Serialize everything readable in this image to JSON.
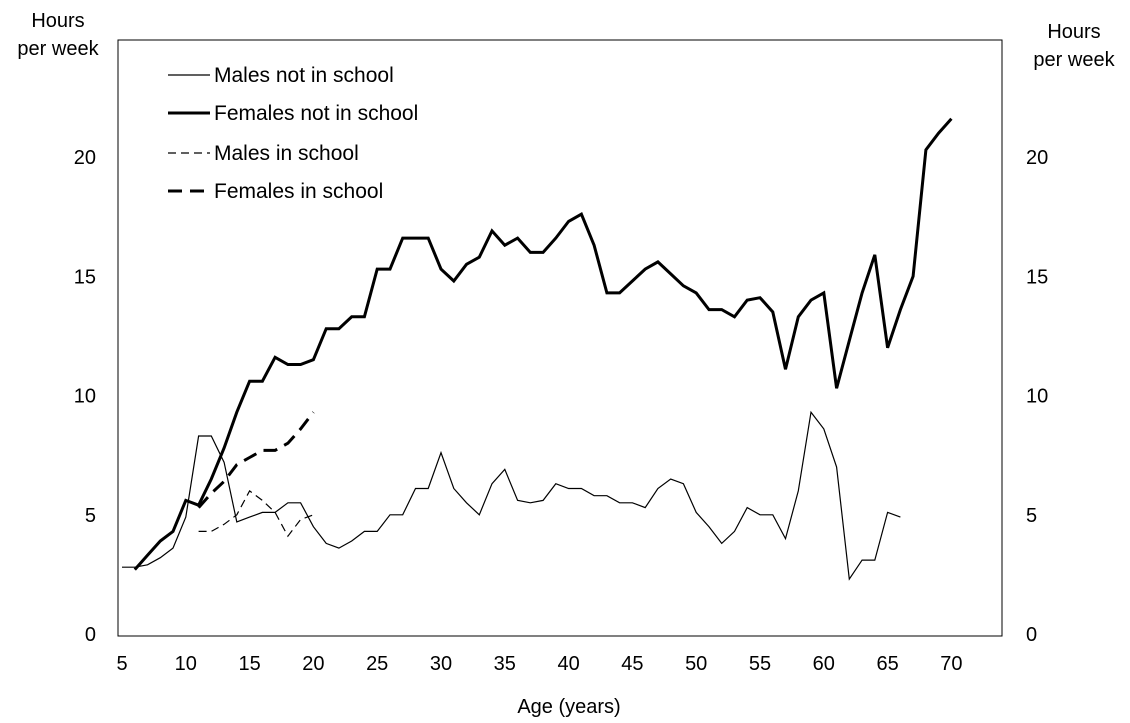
{
  "chart_data": {
    "type": "line",
    "xlabel": "Age (years)",
    "ylabel_left": [
      "Hours",
      "per week"
    ],
    "ylabel_right": [
      "Hours",
      "per week"
    ],
    "xlim": [
      5,
      75
    ],
    "ylim": [
      0,
      25
    ],
    "x_ticks": [
      5,
      10,
      15,
      20,
      25,
      30,
      35,
      40,
      45,
      50,
      55,
      60,
      65,
      70
    ],
    "y_ticks": [
      0,
      5,
      10,
      15,
      20
    ],
    "grid": false,
    "legend_position": "top-left",
    "series": [
      {
        "name": "Males not in school",
        "style": "thin-solid",
        "points": [
          [
            5,
            2.8
          ],
          [
            6,
            2.8
          ],
          [
            7,
            2.9
          ],
          [
            8,
            3.2
          ],
          [
            9,
            3.6
          ],
          [
            10,
            4.9
          ],
          [
            11,
            8.3
          ],
          [
            12,
            8.3
          ],
          [
            13,
            7.2
          ],
          [
            14,
            4.7
          ],
          [
            15,
            4.9
          ],
          [
            16,
            5.1
          ],
          [
            17,
            5.1
          ],
          [
            18,
            5.5
          ],
          [
            19,
            5.5
          ],
          [
            20,
            4.5
          ],
          [
            21,
            3.8
          ],
          [
            22,
            3.6
          ],
          [
            23,
            3.9
          ],
          [
            24,
            4.3
          ],
          [
            25,
            4.3
          ],
          [
            26,
            5.0
          ],
          [
            27,
            5.0
          ],
          [
            28,
            6.1
          ],
          [
            29,
            6.1
          ],
          [
            30,
            7.6
          ],
          [
            31,
            6.1
          ],
          [
            32,
            5.5
          ],
          [
            33,
            5.0
          ],
          [
            34,
            6.3
          ],
          [
            35,
            6.9
          ],
          [
            36,
            5.6
          ],
          [
            37,
            5.5
          ],
          [
            38,
            5.6
          ],
          [
            39,
            6.3
          ],
          [
            40,
            6.1
          ],
          [
            41,
            6.1
          ],
          [
            42,
            5.8
          ],
          [
            43,
            5.8
          ],
          [
            44,
            5.5
          ],
          [
            45,
            5.5
          ],
          [
            46,
            5.3
          ],
          [
            47,
            6.1
          ],
          [
            48,
            6.5
          ],
          [
            49,
            6.3
          ],
          [
            50,
            5.1
          ],
          [
            51,
            4.5
          ],
          [
            52,
            3.8
          ],
          [
            53,
            4.3
          ],
          [
            54,
            5.3
          ],
          [
            55,
            5.0
          ],
          [
            56,
            5.0
          ],
          [
            57,
            4.0
          ],
          [
            58,
            6.0
          ],
          [
            59,
            9.3
          ],
          [
            60,
            8.6
          ],
          [
            61,
            7.0
          ],
          [
            62,
            2.3
          ],
          [
            63,
            3.1
          ],
          [
            64,
            3.1
          ],
          [
            65,
            5.1
          ],
          [
            66,
            4.9
          ]
        ]
      },
      {
        "name": "Females not in school",
        "style": "thick-solid",
        "points": [
          [
            6,
            2.7
          ],
          [
            7,
            3.3
          ],
          [
            8,
            3.9
          ],
          [
            9,
            4.3
          ],
          [
            10,
            5.6
          ],
          [
            11,
            5.4
          ],
          [
            12,
            6.5
          ],
          [
            13,
            7.8
          ],
          [
            14,
            9.3
          ],
          [
            15,
            10.6
          ],
          [
            16,
            10.6
          ],
          [
            17,
            11.6
          ],
          [
            18,
            11.3
          ],
          [
            19,
            11.3
          ],
          [
            20,
            11.5
          ],
          [
            21,
            12.8
          ],
          [
            22,
            12.8
          ],
          [
            23,
            13.3
          ],
          [
            24,
            13.3
          ],
          [
            25,
            15.3
          ],
          [
            26,
            15.3
          ],
          [
            27,
            16.6
          ],
          [
            28,
            16.6
          ],
          [
            29,
            16.6
          ],
          [
            30,
            15.3
          ],
          [
            31,
            14.8
          ],
          [
            32,
            15.5
          ],
          [
            33,
            15.8
          ],
          [
            34,
            16.9
          ],
          [
            35,
            16.3
          ],
          [
            36,
            16.6
          ],
          [
            37,
            16.0
          ],
          [
            38,
            16.0
          ],
          [
            39,
            16.6
          ],
          [
            40,
            17.3
          ],
          [
            41,
            17.6
          ],
          [
            42,
            16.3
          ],
          [
            43,
            14.3
          ],
          [
            44,
            14.3
          ],
          [
            45,
            14.8
          ],
          [
            46,
            15.3
          ],
          [
            47,
            15.6
          ],
          [
            48,
            15.1
          ],
          [
            49,
            14.6
          ],
          [
            50,
            14.3
          ],
          [
            51,
            13.6
          ],
          [
            52,
            13.6
          ],
          [
            53,
            13.3
          ],
          [
            54,
            14.0
          ],
          [
            55,
            14.1
          ],
          [
            56,
            13.5
          ],
          [
            57,
            11.1
          ],
          [
            58,
            13.3
          ],
          [
            59,
            14.0
          ],
          [
            60,
            14.3
          ],
          [
            61,
            10.3
          ],
          [
            62,
            12.3
          ],
          [
            63,
            14.3
          ],
          [
            64,
            15.9
          ],
          [
            65,
            12.0
          ],
          [
            66,
            13.6
          ],
          [
            67,
            15.0
          ],
          [
            68,
            20.3
          ],
          [
            69,
            21.0
          ],
          [
            70,
            21.6
          ]
        ]
      },
      {
        "name": "Males in school",
        "style": "thin-dashed",
        "points": [
          [
            11,
            4.3
          ],
          [
            12,
            4.3
          ],
          [
            13,
            4.6
          ],
          [
            14,
            5.0
          ],
          [
            15,
            6.0
          ],
          [
            16,
            5.6
          ],
          [
            17,
            5.1
          ],
          [
            18,
            4.1
          ],
          [
            19,
            4.8
          ],
          [
            20,
            5.0
          ]
        ]
      },
      {
        "name": "Females in school",
        "style": "thick-dashed",
        "points": [
          [
            11,
            5.3
          ],
          [
            12,
            5.9
          ],
          [
            13,
            6.4
          ],
          [
            14,
            7.1
          ],
          [
            15,
            7.4
          ],
          [
            16,
            7.7
          ],
          [
            17,
            7.7
          ],
          [
            18,
            8.0
          ],
          [
            19,
            8.6
          ],
          [
            20,
            9.3
          ]
        ]
      }
    ]
  }
}
